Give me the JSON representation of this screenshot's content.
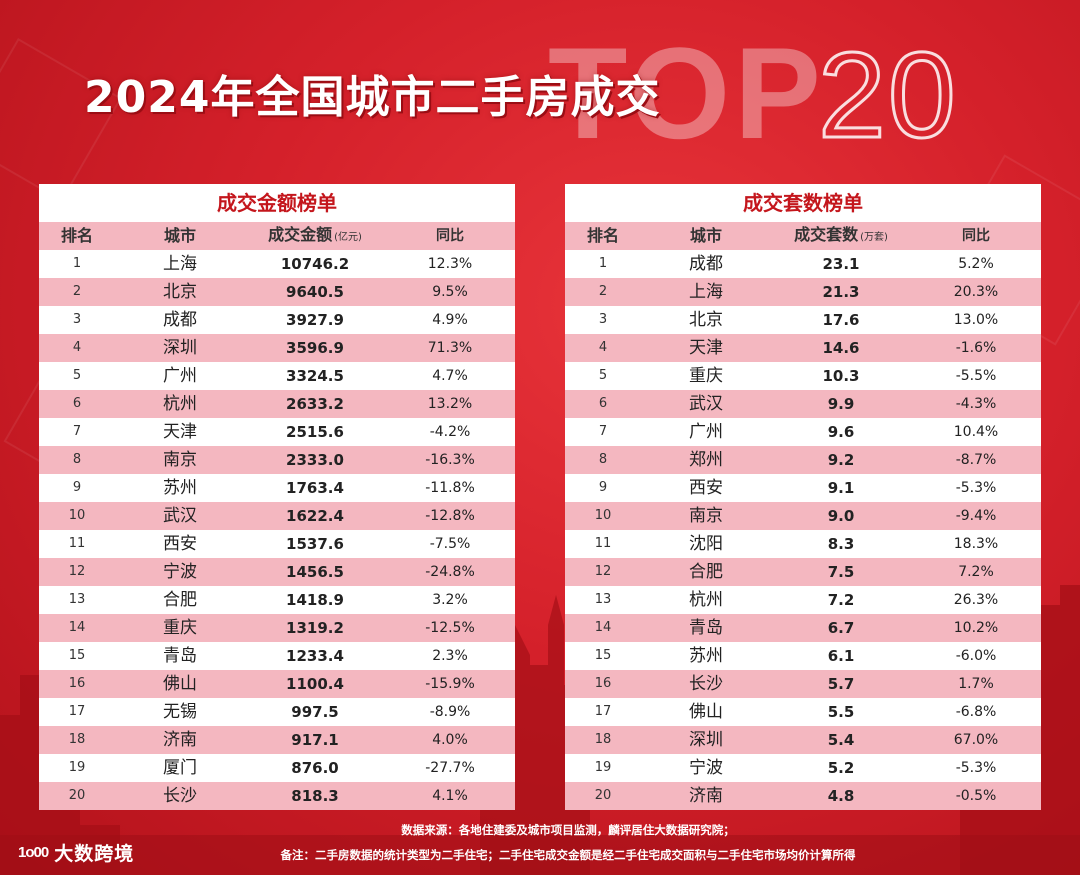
{
  "title": "2024年全国城市二手房成交",
  "watermark_top": "TOP",
  "watermark_20": "20",
  "amount_table": {
    "title": "成交金额榜单",
    "headers": {
      "rank": "排名",
      "city": "城市",
      "value": "成交金额",
      "unit": "(亿元)",
      "yoy": "同比"
    },
    "rows": [
      {
        "rank": "1",
        "city": "上海",
        "value": "10746.2",
        "yoy": "12.3%"
      },
      {
        "rank": "2",
        "city": "北京",
        "value": "9640.5",
        "yoy": "9.5%"
      },
      {
        "rank": "3",
        "city": "成都",
        "value": "3927.9",
        "yoy": "4.9%"
      },
      {
        "rank": "4",
        "city": "深圳",
        "value": "3596.9",
        "yoy": "71.3%"
      },
      {
        "rank": "5",
        "city": "广州",
        "value": "3324.5",
        "yoy": "4.7%"
      },
      {
        "rank": "6",
        "city": "杭州",
        "value": "2633.2",
        "yoy": "13.2%"
      },
      {
        "rank": "7",
        "city": "天津",
        "value": "2515.6",
        "yoy": "-4.2%"
      },
      {
        "rank": "8",
        "city": "南京",
        "value": "2333.0",
        "yoy": "-16.3%"
      },
      {
        "rank": "9",
        "city": "苏州",
        "value": "1763.4",
        "yoy": "-11.8%"
      },
      {
        "rank": "10",
        "city": "武汉",
        "value": "1622.4",
        "yoy": "-12.8%"
      },
      {
        "rank": "11",
        "city": "西安",
        "value": "1537.6",
        "yoy": "-7.5%"
      },
      {
        "rank": "12",
        "city": "宁波",
        "value": "1456.5",
        "yoy": "-24.8%"
      },
      {
        "rank": "13",
        "city": "合肥",
        "value": "1418.9",
        "yoy": "3.2%"
      },
      {
        "rank": "14",
        "city": "重庆",
        "value": "1319.2",
        "yoy": "-12.5%"
      },
      {
        "rank": "15",
        "city": "青岛",
        "value": "1233.4",
        "yoy": "2.3%"
      },
      {
        "rank": "16",
        "city": "佛山",
        "value": "1100.4",
        "yoy": "-15.9%"
      },
      {
        "rank": "17",
        "city": "无锡",
        "value": "997.5",
        "yoy": "-8.9%"
      },
      {
        "rank": "18",
        "city": "济南",
        "value": "917.1",
        "yoy": "4.0%"
      },
      {
        "rank": "19",
        "city": "厦门",
        "value": "876.0",
        "yoy": "-27.7%"
      },
      {
        "rank": "20",
        "city": "长沙",
        "value": "818.3",
        "yoy": "4.1%"
      }
    ]
  },
  "count_table": {
    "title": "成交套数榜单",
    "headers": {
      "rank": "排名",
      "city": "城市",
      "value": "成交套数",
      "unit": "(万套)",
      "yoy": "同比"
    },
    "rows": [
      {
        "rank": "1",
        "city": "成都",
        "value": "23.1",
        "yoy": "5.2%"
      },
      {
        "rank": "2",
        "city": "上海",
        "value": "21.3",
        "yoy": "20.3%"
      },
      {
        "rank": "3",
        "city": "北京",
        "value": "17.6",
        "yoy": "13.0%"
      },
      {
        "rank": "4",
        "city": "天津",
        "value": "14.6",
        "yoy": "-1.6%"
      },
      {
        "rank": "5",
        "city": "重庆",
        "value": "10.3",
        "yoy": "-5.5%"
      },
      {
        "rank": "6",
        "city": "武汉",
        "value": "9.9",
        "yoy": "-4.3%"
      },
      {
        "rank": "7",
        "city": "广州",
        "value": "9.6",
        "yoy": "10.4%"
      },
      {
        "rank": "8",
        "city": "郑州",
        "value": "9.2",
        "yoy": "-8.7%"
      },
      {
        "rank": "9",
        "city": "西安",
        "value": "9.1",
        "yoy": "-5.3%"
      },
      {
        "rank": "10",
        "city": "南京",
        "value": "9.0",
        "yoy": "-9.4%"
      },
      {
        "rank": "11",
        "city": "沈阳",
        "value": "8.3",
        "yoy": "18.3%"
      },
      {
        "rank": "12",
        "city": "合肥",
        "value": "7.5",
        "yoy": "7.2%"
      },
      {
        "rank": "13",
        "city": "杭州",
        "value": "7.2",
        "yoy": "26.3%"
      },
      {
        "rank": "14",
        "city": "青岛",
        "value": "6.7",
        "yoy": "10.2%"
      },
      {
        "rank": "15",
        "city": "苏州",
        "value": "6.1",
        "yoy": "-6.0%"
      },
      {
        "rank": "16",
        "city": "长沙",
        "value": "5.7",
        "yoy": "1.7%"
      },
      {
        "rank": "17",
        "city": "佛山",
        "value": "5.5",
        "yoy": "-6.8%"
      },
      {
        "rank": "18",
        "city": "深圳",
        "value": "5.4",
        "yoy": "67.0%"
      },
      {
        "rank": "19",
        "city": "宁波",
        "value": "5.2",
        "yoy": "-5.3%"
      },
      {
        "rank": "20",
        "city": "济南",
        "value": "4.8",
        "yoy": "-0.5%"
      }
    ]
  },
  "footer": {
    "source": "数据来源：各地住建委及城市项目监测，麟评居住大数据研究院；",
    "note": "备注：二手房数据的统计类型为二手住宅；二手住宅成交金额是经二手住宅成交面积与二手住宅市场均价计算所得"
  },
  "logo": {
    "mark": "1o00",
    "text": "大数跨境"
  },
  "colors": {
    "background": "#d4202a",
    "title_red": "#c4161c",
    "row_pink": "#f4b7c0",
    "panel": "#ffffff"
  }
}
